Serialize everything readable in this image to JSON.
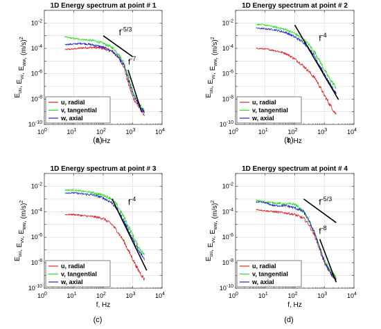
{
  "panels": [
    {
      "title": "1D Energy spectrum  at point # 1",
      "caption": "(a)",
      "xlabel": "f, Hz",
      "annotations": [
        {
          "base": "f",
          "exp": "-5/3",
          "f": 340,
          "e": 0.0011
        },
        {
          "base": "f",
          "exp": "-7",
          "f": 700,
          "e": 5.2e-06
        }
      ]
    },
    {
      "title": "1D Energy spectrum  at point # 2",
      "caption": "(b)",
      "xlabel": "f, Hz",
      "annotations": [
        {
          "base": "f",
          "exp": "-4",
          "f": 650,
          "e": 0.00038
        }
      ]
    },
    {
      "title": "1D Energy spectrum  at point # 3",
      "caption": "(c)",
      "xlabel": "f, Hz",
      "annotations": [
        {
          "base": "f",
          "exp": "-4",
          "f": 700,
          "e": 0.00035
        }
      ]
    },
    {
      "title": "1D Energy spectrum  at point # 4",
      "caption": "(d)",
      "xlabel": "f, Hz",
      "annotations": [
        {
          "base": "f",
          "exp": "-5/3",
          "f": 650,
          "e": 0.00035
        },
        {
          "base": "f",
          "exp": "-8",
          "f": 650,
          "e": 1.8e-06
        }
      ]
    }
  ],
  "ylabel": {
    "parts": [
      {
        "t": "E",
        "sub": "uu"
      },
      {
        "t": ", E",
        "sub": "vv"
      },
      {
        "t": ", E",
        "sub": "ww"
      },
      {
        "t": ", (m/s)",
        "sup": "2"
      }
    ]
  },
  "legend": [
    {
      "label": "u, radial",
      "color": "#e02020"
    },
    {
      "label": "v, tangential",
      "color": "#20e020"
    },
    {
      "label": "w, axial",
      "color": "#2020d0"
    }
  ],
  "colors": {
    "u": "#e02020",
    "v": "#20e020",
    "w": "#2020d0",
    "fit": "#000000"
  },
  "chart_data": [
    {
      "type": "line",
      "title": "1D Energy spectrum  at point # 1",
      "xlabel": "f, Hz",
      "ylabel": "Euu, Evv, Eww, (m/s)^2",
      "xscale": "log",
      "yscale": "log",
      "xlim": [
        1,
        10000
      ],
      "ylim": [
        1e-10,
        0.1
      ],
      "xticks": [
        1,
        10,
        100,
        1000,
        10000
      ],
      "xtick_labels": [
        "10^0",
        "10^1",
        "10^2",
        "10^3",
        "10^4"
      ],
      "yticks": [
        1e-10,
        1e-08,
        1e-06,
        0.0001,
        0.01
      ],
      "ytick_labels": [
        "10^-10",
        "10^-8",
        "10^-6",
        "10^-4",
        "10^-2"
      ],
      "grid": true,
      "legend_position": "bottom-left",
      "series": [
        {
          "name": "u, radial",
          "color": "#e02020",
          "x": [
            5,
            10,
            20,
            50,
            100,
            200,
            300,
            500,
            700,
            1000,
            1500,
            2500
          ],
          "y": [
            8e-05,
            9e-05,
            0.00011,
            0.00012,
            0.0001,
            6e-05,
            2.5e-05,
            4e-06,
            2e-07,
            1.5e-08,
            3e-09,
            6e-10
          ]
        },
        {
          "name": "v, tangential",
          "color": "#20e020",
          "x": [
            5,
            10,
            20,
            50,
            100,
            200,
            300,
            500,
            700,
            1000,
            1500,
            2500
          ],
          "y": [
            0.0008,
            0.0006,
            0.0005,
            0.0004,
            0.00025,
            0.00012,
            5e-05,
            8e-06,
            8e-07,
            4e-08,
            6e-09,
            1e-09
          ]
        },
        {
          "name": "w, axial",
          "color": "#2020d0",
          "x": [
            5,
            10,
            20,
            50,
            100,
            200,
            300,
            500,
            700,
            1000,
            1500,
            2500
          ],
          "y": [
            0.0002,
            0.00022,
            0.00025,
            0.00018,
            0.00012,
            6e-05,
            2.5e-05,
            5e-06,
            4e-07,
            3e-08,
            5e-09,
            8e-10
          ]
        },
        {
          "name": "",
          "color": "#000000",
          "x": [
            100,
            1000
          ],
          "y": [
            0.001,
            2.2e-05
          ]
        },
        {
          "name": "",
          "color": "#000000",
          "x": [
            700,
            2000
          ],
          "y": [
            2e-06,
            1e-09
          ]
        }
      ]
    },
    {
      "type": "line",
      "title": "1D Energy spectrum  at point # 2",
      "xlabel": "f, Hz",
      "ylabel": "Euu, Evv, Eww, (m/s)^2",
      "xscale": "log",
      "yscale": "log",
      "xlim": [
        1,
        10000
      ],
      "ylim": [
        1e-10,
        0.1
      ],
      "xticks": [
        1,
        10,
        100,
        1000,
        10000
      ],
      "xtick_labels": [
        "10^0",
        "10^1",
        "10^2",
        "10^3",
        "10^4"
      ],
      "yticks": [
        1e-10,
        1e-08,
        1e-06,
        0.0001,
        0.01
      ],
      "ytick_labels": [
        "10^-10",
        "10^-8",
        "10^-6",
        "10^-4",
        "10^-2"
      ],
      "grid": true,
      "legend_position": "bottom-left",
      "series": [
        {
          "name": "u, radial",
          "color": "#e02020",
          "x": [
            5,
            10,
            20,
            50,
            100,
            200,
            300,
            500,
            700,
            1000,
            1500,
            2500
          ],
          "y": [
            0.0001,
            9e-05,
            7e-05,
            4e-05,
            1.5e-05,
            4e-06,
            1.5e-06,
            4e-07,
            1e-07,
            2e-08,
            4e-09,
            6e-10
          ]
        },
        {
          "name": "v, tangential",
          "color": "#20e020",
          "x": [
            5,
            10,
            20,
            50,
            100,
            200,
            300,
            500,
            700,
            1000,
            1500,
            2500
          ],
          "y": [
            0.008,
            0.007,
            0.005,
            0.003,
            0.0015,
            0.0005,
            0.0002,
            4e-05,
            1e-05,
            2e-06,
            4e-07,
            8e-08
          ]
        },
        {
          "name": "w, axial",
          "color": "#2020d0",
          "x": [
            5,
            10,
            20,
            50,
            100,
            200,
            300,
            500,
            700,
            1000,
            1500,
            2500
          ],
          "y": [
            0.004,
            0.0035,
            0.003,
            0.0018,
            0.0008,
            0.0003,
            0.0001,
            2e-05,
            4e-06,
            8e-07,
            1.5e-07,
            3e-08
          ]
        },
        {
          "name": "",
          "color": "#000000",
          "x": [
            100,
            3000
          ],
          "y": [
            0.007,
            9e-09
          ]
        }
      ]
    },
    {
      "type": "line",
      "title": "1D Energy spectrum  at point # 3",
      "xlabel": "f, Hz",
      "ylabel": "Euu, Evv, Eww, (m/s)^2",
      "xscale": "log",
      "yscale": "log",
      "xlim": [
        1,
        10000
      ],
      "ylim": [
        1e-10,
        0.1
      ],
      "xticks": [
        1,
        10,
        100,
        1000,
        10000
      ],
      "xtick_labels": [
        "10^0",
        "10^1",
        "10^2",
        "10^3",
        "10^4"
      ],
      "yticks": [
        1e-10,
        1e-08,
        1e-06,
        0.0001,
        0.01
      ],
      "ytick_labels": [
        "10^-10",
        "10^-8",
        "10^-6",
        "10^-4",
        "10^-2"
      ],
      "grid": true,
      "legend_position": "bottom-left",
      "series": [
        {
          "name": "u, radial",
          "color": "#e02020",
          "x": [
            5,
            10,
            20,
            50,
            100,
            200,
            300,
            500,
            700,
            1000,
            1500,
            2500
          ],
          "y": [
            6e-05,
            6e-05,
            5e-05,
            4e-05,
            3e-05,
            1e-05,
            3e-06,
            5e-07,
            1e-07,
            2e-08,
            3e-09,
            5e-10
          ]
        },
        {
          "name": "v, tangential",
          "color": "#20e020",
          "x": [
            5,
            10,
            20,
            50,
            100,
            200,
            300,
            500,
            700,
            1000,
            1500,
            2500
          ],
          "y": [
            0.005,
            0.005,
            0.004,
            0.003,
            0.002,
            0.001,
            0.0003,
            4e-05,
            8e-06,
            1.5e-06,
            2e-07,
            4e-08
          ]
        },
        {
          "name": "w, axial",
          "color": "#2020d0",
          "x": [
            5,
            10,
            20,
            50,
            100,
            200,
            300,
            500,
            700,
            1000,
            1500,
            2500
          ],
          "y": [
            0.003,
            0.003,
            0.0025,
            0.002,
            0.0012,
            0.0005,
            0.00015,
            2e-05,
            4e-06,
            7e-07,
            1e-07,
            2e-08
          ]
        },
        {
          "name": "",
          "color": "#000000",
          "x": [
            200,
            3000
          ],
          "y": [
            0.001,
            2.5e-09
          ]
        }
      ]
    },
    {
      "type": "line",
      "title": "1D Energy spectrum  at point # 4",
      "xlabel": "f, Hz",
      "ylabel": "Euu, Evv, Eww, (m/s)^2",
      "xscale": "log",
      "yscale": "log",
      "xlim": [
        1,
        10000
      ],
      "ylim": [
        1e-10,
        0.1
      ],
      "xticks": [
        1,
        10,
        100,
        1000,
        10000
      ],
      "xtick_labels": [
        "10^0",
        "10^1",
        "10^2",
        "10^3",
        "10^4"
      ],
      "yticks": [
        1e-10,
        1e-08,
        1e-06,
        0.0001,
        0.01
      ],
      "ytick_labels": [
        "10^-10",
        "10^-8",
        "10^-6",
        "10^-4",
        "10^-2"
      ],
      "grid": true,
      "legend_position": "bottom-left",
      "series": [
        {
          "name": "u, radial",
          "color": "#e02020",
          "x": [
            5,
            10,
            20,
            50,
            100,
            200,
            300,
            500,
            700,
            1000,
            1500,
            2500
          ],
          "y": [
            0.00015,
            0.00012,
            0.0001,
            8e-05,
            6e-05,
            3e-05,
            1e-05,
            1e-06,
            1e-07,
            1e-08,
            2e-09,
            5e-10
          ]
        },
        {
          "name": "v, tangential",
          "color": "#20e020",
          "x": [
            5,
            10,
            20,
            50,
            100,
            200,
            300,
            500,
            700,
            1000,
            1500,
            2500
          ],
          "y": [
            0.0008,
            0.0006,
            0.0005,
            0.0004,
            0.0004,
            0.0001,
            2e-05,
            1.5e-06,
            1.5e-07,
            1.5e-08,
            3e-09,
            6e-10
          ]
        },
        {
          "name": "w, axial",
          "color": "#2020d0",
          "x": [
            5,
            10,
            20,
            50,
            100,
            200,
            300,
            500,
            700,
            1000,
            1500,
            2500
          ],
          "y": [
            0.0006,
            0.0005,
            0.0003,
            0.0003,
            0.0002,
            0.0001,
            2e-05,
            1.5e-06,
            1.5e-07,
            1.2e-08,
            2e-09,
            4e-10
          ]
        },
        {
          "name": "",
          "color": "#000000",
          "x": [
            200,
            2500
          ],
          "y": [
            0.001,
            1.4e-05
          ]
        },
        {
          "name": "",
          "color": "#000000",
          "x": [
            700,
            2500
          ],
          "y": [
            7e-07,
            3e-10
          ]
        }
      ]
    }
  ]
}
